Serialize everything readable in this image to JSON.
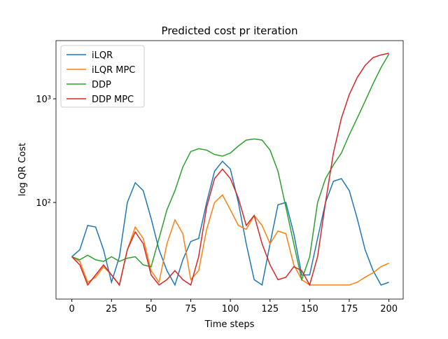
{
  "chart_data": {
    "type": "line",
    "title": "Predicted cost pr iteration",
    "xlabel": "Time steps",
    "ylabel": "log QR Cost",
    "x": [
      0,
      5,
      10,
      15,
      20,
      25,
      30,
      35,
      40,
      45,
      50,
      55,
      60,
      65,
      70,
      75,
      80,
      85,
      90,
      95,
      100,
      105,
      110,
      115,
      120,
      125,
      130,
      135,
      140,
      145,
      150,
      155,
      160,
      165,
      170,
      175,
      180,
      185,
      190,
      195,
      200
    ],
    "series": [
      {
        "name": "iLQR",
        "color": "#1f77b4",
        "values": [
          30,
          35,
          60,
          58,
          35,
          17,
          30,
          100,
          155,
          130,
          70,
          35,
          22,
          16,
          28,
          42,
          45,
          100,
          200,
          250,
          210,
          100,
          40,
          18,
          16,
          40,
          95,
          100,
          50,
          20,
          20,
          45,
          100,
          160,
          170,
          130,
          70,
          35,
          22,
          16,
          17
        ]
      },
      {
        "name": "iLQR MPC",
        "color": "#ff7f0e",
        "values": [
          30,
          27,
          17,
          19,
          24,
          20,
          16,
          35,
          58,
          45,
          22,
          17,
          40,
          68,
          50,
          18,
          22,
          55,
          100,
          118,
          85,
          60,
          55,
          75,
          60,
          40,
          53,
          50,
          25,
          18,
          16,
          16,
          16,
          16,
          16,
          16,
          17,
          19,
          21,
          24,
          26
        ]
      },
      {
        "name": "DDP",
        "color": "#2ca02c",
        "values": [
          30,
          28,
          31,
          28,
          27,
          30,
          27,
          29,
          30,
          25,
          24,
          45,
          85,
          130,
          220,
          310,
          330,
          320,
          290,
          280,
          300,
          350,
          400,
          410,
          400,
          320,
          200,
          90,
          40,
          18,
          30,
          100,
          170,
          230,
          300,
          450,
          650,
          950,
          1400,
          2000,
          2700
        ]
      },
      {
        "name": "DDP MPC",
        "color": "#d62728",
        "values": [
          30,
          25,
          16,
          20,
          25,
          20,
          16,
          35,
          52,
          40,
          20,
          16,
          18,
          22,
          18,
          16,
          30,
          90,
          170,
          210,
          170,
          110,
          60,
          75,
          40,
          25,
          18,
          19,
          24,
          22,
          16,
          30,
          100,
          300,
          650,
          1100,
          1600,
          2100,
          2500,
          2650,
          2750
        ]
      }
    ],
    "xlim": [
      -10,
      209
    ],
    "xticks": [
      0,
      25,
      50,
      75,
      100,
      125,
      150,
      175,
      200
    ],
    "ylim": [
      11.7,
      3640
    ],
    "yscale": "log",
    "yticks": [
      {
        "value": 100,
        "label": "10²"
      },
      {
        "value": 1000,
        "label": "10³"
      }
    ],
    "legend": "upper left"
  }
}
